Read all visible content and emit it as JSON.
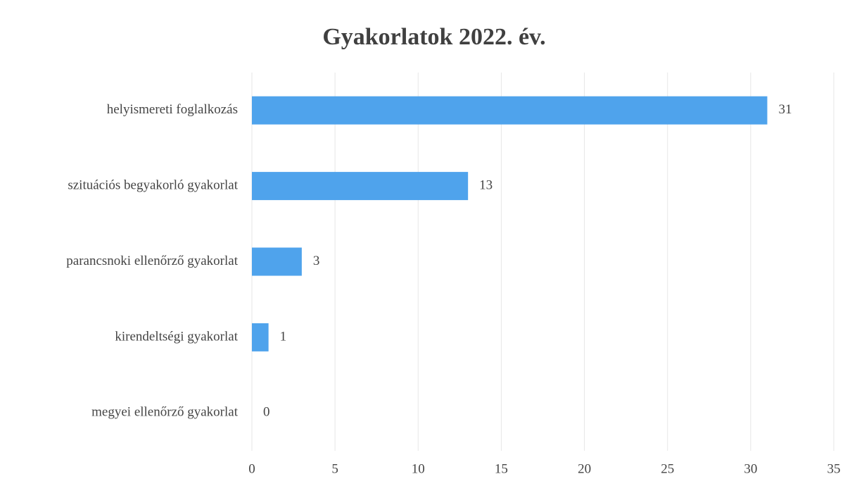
{
  "chart_data": {
    "type": "bar",
    "orientation": "horizontal",
    "title": "Gyakorlatok 2022. év.",
    "categories": [
      "helyismereti foglalkozás",
      "szituációs begyakorló gyakorlat",
      "parancsnoki ellenőrző gyakorlat",
      "kirendeltségi gyakorlat",
      "megyei ellenőrző gyakorlat"
    ],
    "values": [
      31,
      13,
      3,
      1,
      0
    ],
    "color": "#4fa3ec",
    "xlim": [
      0,
      35
    ],
    "xticks": [
      0,
      5,
      10,
      15,
      20,
      25,
      30,
      35
    ],
    "grid": true
  }
}
